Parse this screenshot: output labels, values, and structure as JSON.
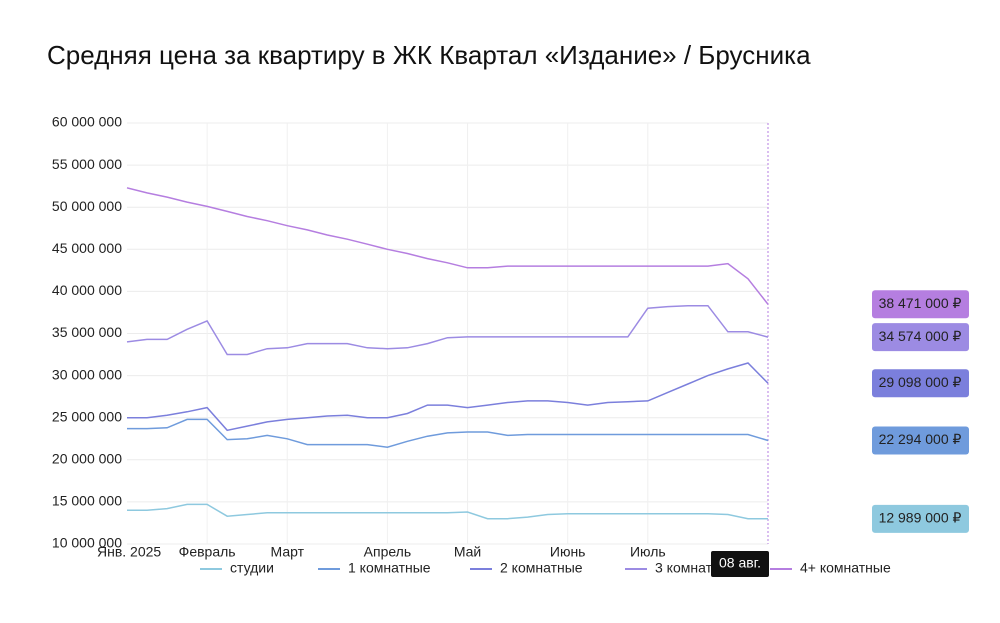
{
  "chart_data": {
    "type": "line",
    "title": "Средняя цена за квартиру в ЖК Квартал «Издание» / Брусника",
    "categories": [
      "Янв. 2025",
      null,
      null,
      null,
      "Февраль",
      null,
      null,
      null,
      "Март",
      null,
      null,
      null,
      null,
      "Апрель",
      null,
      null,
      null,
      "Май",
      null,
      null,
      null,
      null,
      "Июнь",
      null,
      null,
      null,
      "Июль",
      null,
      null,
      null,
      null,
      null,
      "08 авг."
    ],
    "ylim": [
      10000000,
      60000000
    ],
    "yticks": [
      {
        "value": 10000000,
        "label": "10 000 000"
      },
      {
        "value": 15000000,
        "label": "15 000 000"
      },
      {
        "value": 20000000,
        "label": "20 000 000"
      },
      {
        "value": 25000000,
        "label": "25 000 000"
      },
      {
        "value": 30000000,
        "label": "30 000 000"
      },
      {
        "value": 35000000,
        "label": "35 000 000"
      },
      {
        "value": 40000000,
        "label": "40 000 000"
      },
      {
        "value": 45000000,
        "label": "45 000 000"
      },
      {
        "value": 50000000,
        "label": "50 000 000"
      },
      {
        "value": 55000000,
        "label": "55 000 000"
      },
      {
        "value": 60000000,
        "label": "60 000 000"
      }
    ],
    "grid": true,
    "legend": "bottom",
    "series": [
      {
        "name": "студии",
        "color": "#8ec9df",
        "values": [
          14000000,
          14000000,
          14200000,
          14700000,
          14700000,
          13300000,
          13500000,
          13700000,
          13700000,
          13700000,
          13700000,
          13700000,
          13700000,
          13700000,
          13700000,
          13700000,
          13700000,
          13800000,
          13000000,
          13000000,
          13200000,
          13500000,
          13600000,
          13600000,
          13600000,
          13600000,
          13600000,
          13600000,
          13600000,
          13600000,
          13500000,
          13000000,
          12989000
        ],
        "value_labels": [
          null,
          null,
          null,
          null,
          null,
          null,
          null,
          null,
          null,
          null,
          null,
          null,
          null,
          null,
          null,
          null,
          null,
          null,
          null,
          null,
          null,
          null,
          null,
          null,
          null,
          null,
          null,
          null,
          null,
          null,
          null,
          null,
          "12 989 000 ₽"
        ]
      },
      {
        "name": "1 комнатные",
        "color": "#6f9bdc",
        "values": [
          23700000,
          23700000,
          23800000,
          24800000,
          24800000,
          22400000,
          22500000,
          22900000,
          22500000,
          21800000,
          21800000,
          21800000,
          21800000,
          21500000,
          22200000,
          22800000,
          23200000,
          23300000,
          23300000,
          22900000,
          23000000,
          23000000,
          23000000,
          23000000,
          23000000,
          23000000,
          23000000,
          23000000,
          23000000,
          23000000,
          23000000,
          23000000,
          22294000
        ],
        "value_labels": [
          null,
          null,
          null,
          null,
          null,
          null,
          null,
          null,
          null,
          null,
          null,
          null,
          null,
          null,
          null,
          null,
          null,
          null,
          null,
          null,
          null,
          null,
          null,
          null,
          null,
          null,
          null,
          null,
          null,
          null,
          null,
          null,
          "22 294 000 ₽"
        ]
      },
      {
        "name": "2 комнатные",
        "color": "#7b7fdc",
        "values": [
          25000000,
          25000000,
          25300000,
          25700000,
          26200000,
          23500000,
          24000000,
          24500000,
          24800000,
          25000000,
          25200000,
          25300000,
          25000000,
          25000000,
          25500000,
          26500000,
          26500000,
          26200000,
          26500000,
          26800000,
          27000000,
          27000000,
          26800000,
          26500000,
          26800000,
          26900000,
          27000000,
          28000000,
          29000000,
          30000000,
          30800000,
          31500000,
          29098000
        ],
        "value_labels": [
          null,
          null,
          null,
          null,
          null,
          null,
          null,
          null,
          null,
          null,
          null,
          null,
          null,
          null,
          null,
          null,
          null,
          null,
          null,
          null,
          null,
          null,
          null,
          null,
          null,
          null,
          null,
          null,
          null,
          null,
          null,
          null,
          "29 098 000 ₽"
        ]
      },
      {
        "name": "3 комнатные",
        "color": "#9c8be3",
        "values": [
          34000000,
          34300000,
          34300000,
          35500000,
          36500000,
          32500000,
          32500000,
          33200000,
          33300000,
          33800000,
          33800000,
          33800000,
          33300000,
          33200000,
          33300000,
          33800000,
          34500000,
          34600000,
          34600000,
          34600000,
          34600000,
          34600000,
          34600000,
          34600000,
          34600000,
          34600000,
          38000000,
          38200000,
          38300000,
          38300000,
          35200000,
          35200000,
          34574000
        ],
        "value_labels": [
          null,
          null,
          null,
          null,
          null,
          null,
          null,
          null,
          null,
          null,
          null,
          null,
          null,
          null,
          null,
          null,
          null,
          null,
          null,
          null,
          null,
          null,
          null,
          null,
          null,
          null,
          null,
          null,
          null,
          null,
          null,
          null,
          "34 574 000 ₽"
        ]
      },
      {
        "name": "4+ комнатные",
        "color": "#b57ee0",
        "values": [
          52300000,
          51700000,
          51200000,
          50600000,
          50100000,
          49500000,
          48900000,
          48400000,
          47800000,
          47300000,
          46700000,
          46200000,
          45600000,
          45000000,
          44500000,
          43900000,
          43400000,
          42800000,
          42800000,
          43000000,
          43000000,
          43000000,
          43000000,
          43000000,
          43000000,
          43000000,
          43000000,
          43000000,
          43000000,
          43000000,
          43300000,
          41500000,
          38471000
        ],
        "value_labels": [
          null,
          null,
          null,
          null,
          null,
          null,
          null,
          null,
          null,
          null,
          null,
          null,
          null,
          null,
          null,
          null,
          null,
          null,
          null,
          null,
          null,
          null,
          null,
          null,
          null,
          null,
          null,
          null,
          null,
          null,
          null,
          null,
          "38 471 000 ₽"
        ]
      }
    ]
  }
}
